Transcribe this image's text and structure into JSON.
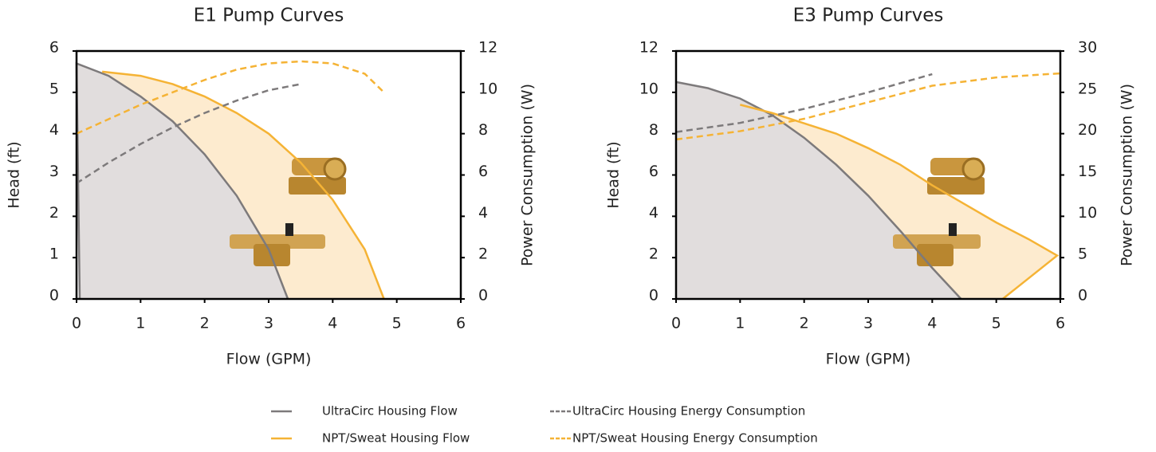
{
  "chart_data": [
    {
      "type": "line",
      "title": "E1 Pump Curves",
      "xlabel": "Flow (GPM)",
      "ylabel": "Head (ft)",
      "y2label": "Power Consumption (W)",
      "xlim": [
        0,
        6
      ],
      "xticks": [
        0,
        1,
        2,
        3,
        4,
        5,
        6
      ],
      "ylim": [
        0,
        6
      ],
      "yticks": [
        0,
        1,
        2,
        3,
        4,
        5,
        6
      ],
      "y2lim": [
        0,
        12
      ],
      "y2ticks": [
        0,
        2,
        4,
        6,
        8,
        10,
        12
      ],
      "series": [
        {
          "name": "UltraCirc Housing Flow",
          "color": "#7d7a7b",
          "fill_color": "#e1dddd",
          "dashed": false,
          "x": [
            0.05,
            0,
            0.5,
            1,
            1.5,
            2,
            2.5,
            3,
            3.3
          ],
          "values": [
            0,
            5.7,
            5.4,
            4.9,
            4.3,
            3.5,
            2.5,
            1.2,
            0
          ]
        },
        {
          "name": "NPT/Sweat Housing Flow",
          "color": "#f5b335",
          "fill_color": "#fdebcf",
          "dashed": false,
          "x": [
            0.4,
            1,
            1.5,
            2,
            2.5,
            3,
            3.5,
            4,
            4.5,
            4.8
          ],
          "values": [
            5.5,
            5.4,
            5.2,
            4.9,
            4.5,
            4.0,
            3.3,
            2.4,
            1.2,
            0
          ]
        },
        {
          "name": "UltraCirc Housing Energy Consumption",
          "color": "#7d7a7b",
          "dashed": true,
          "axis": "y2",
          "x": [
            0,
            0.5,
            1,
            1.5,
            2,
            2.5,
            3,
            3.5
          ],
          "values": [
            5.6,
            6.6,
            7.5,
            8.3,
            9.0,
            9.6,
            10.1,
            10.4
          ]
        },
        {
          "name": "NPT/Sweat Housing Energy Consumption",
          "color": "#f5b335",
          "dashed": true,
          "axis": "y2",
          "x": [
            0,
            0.5,
            1,
            1.5,
            2,
            2.5,
            3,
            3.5,
            4,
            4.5,
            4.8
          ],
          "values": [
            8.0,
            8.7,
            9.4,
            10.0,
            10.6,
            11.1,
            11.4,
            11.5,
            11.4,
            10.9,
            10.0
          ]
        }
      ]
    },
    {
      "type": "line",
      "title": "E3 Pump Curves",
      "xlabel": "Flow (GPM)",
      "ylabel": "Head (ft)",
      "y2label": "Power Consumption (W)",
      "xlim": [
        0,
        6
      ],
      "xticks": [
        0,
        1,
        2,
        3,
        4,
        5,
        6
      ],
      "ylim": [
        0,
        12
      ],
      "yticks": [
        0,
        2,
        4,
        6,
        8,
        10,
        12
      ],
      "y2lim": [
        0,
        30
      ],
      "y2ticks": [
        0,
        5,
        10,
        15,
        20,
        25,
        30
      ],
      "series": [
        {
          "color": "#7d7a7b",
          "fill_color": "#e1dddd",
          "dashed": false,
          "x": [
            0,
            0.5,
            1,
            1.5,
            2,
            2.5,
            3,
            3.5,
            4,
            4.45
          ],
          "values": [
            10.5,
            10.2,
            9.7,
            8.9,
            7.8,
            6.5,
            5.0,
            3.3,
            1.5,
            0
          ]
        },
        {
          "color": "#f5b335",
          "fill_color": "#fdebcf",
          "dashed": false,
          "x": [
            1,
            1.5,
            2,
            2.5,
            3,
            3.5,
            4,
            4.5,
            5,
            5.5,
            5.95,
            5.1
          ],
          "values": [
            9.4,
            9.0,
            8.5,
            8.0,
            7.3,
            6.5,
            5.5,
            4.6,
            3.7,
            2.9,
            2.1,
            0
          ]
        },
        {
          "color": "#7d7a7b",
          "dashed": true,
          "axis": "y2",
          "x": [
            0,
            1,
            2,
            3,
            4
          ],
          "values": [
            20.2,
            21.3,
            23.0,
            25.0,
            27.2
          ]
        },
        {
          "color": "#f5b335",
          "dashed": true,
          "axis": "y2",
          "x": [
            0,
            1,
            2,
            3,
            4,
            5,
            6
          ],
          "values": [
            19.3,
            20.3,
            21.8,
            23.8,
            25.8,
            26.8,
            27.3
          ]
        }
      ]
    }
  ]
}
